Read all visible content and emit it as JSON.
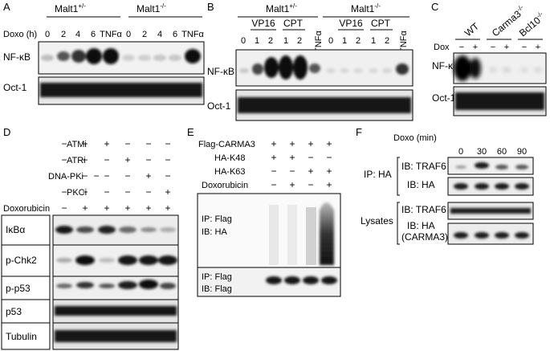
{
  "panels": {
    "A": {
      "letter": "A",
      "geno1": "Malt1",
      "geno1_sup": "+/-",
      "geno2": "Malt1",
      "geno2_sup": "-/-",
      "rowlabel": "Doxo (h)",
      "lanes": [
        "0",
        "2",
        "4",
        "6",
        "TNFα",
        "0",
        "2",
        "4",
        "6",
        "TNFα"
      ],
      "blots": [
        "NF-κB",
        "Oct-1"
      ]
    },
    "B": {
      "letter": "B",
      "geno1": "Malt1",
      "geno1_sup": "+/-",
      "geno2": "Malt1",
      "geno2_sup": "-/-",
      "groups": [
        "VP16",
        "CPT",
        "VP16",
        "CPT"
      ],
      "lanes": [
        "0",
        "1",
        "2",
        "1",
        "2",
        "TNFα",
        "0",
        "1",
        "2",
        "1",
        "2",
        "TNFα"
      ],
      "blots": [
        "NF-κB",
        "Oct-1"
      ]
    },
    "C": {
      "letter": "C",
      "groups": [
        {
          "name": "WT",
          "sup": ""
        },
        {
          "name": "Carma3",
          "sup": "-/-"
        },
        {
          "name": "Bcl10",
          "sup": "-/-"
        }
      ],
      "dox_label": "Dox",
      "signs": [
        "−",
        "+",
        "−",
        "+",
        "−",
        "+"
      ],
      "blots": [
        "NF-κB",
        "Oct-1"
      ]
    },
    "D": {
      "letter": "D",
      "treatments": [
        {
          "name": "ATMi",
          "signs": [
            "−",
            "−",
            "+",
            "−",
            "−",
            "−"
          ]
        },
        {
          "name": "ATRi",
          "signs": [
            "−",
            "−",
            "−",
            "+",
            "−",
            "−"
          ]
        },
        {
          "name": "DNA-PKi",
          "signs": [
            "−",
            "−",
            "−",
            "−",
            "+",
            "−"
          ]
        },
        {
          "name": "PKCi",
          "signs": [
            "−",
            "−",
            "−",
            "−",
            "−",
            "+"
          ]
        },
        {
          "name": "Doxorubicin",
          "signs": [
            "−",
            "+",
            "+",
            "+",
            "+",
            "+"
          ]
        }
      ],
      "blots": [
        "IκBα",
        "p-Chk2",
        "p-p53",
        "p53",
        "Tubulin"
      ]
    },
    "E": {
      "letter": "E",
      "treatments": [
        {
          "name": "Flag-CARMA3",
          "signs": [
            "+",
            "+",
            "+",
            "+"
          ]
        },
        {
          "name": "HA-K48",
          "signs": [
            "+",
            "+",
            "−",
            "−"
          ]
        },
        {
          "name": "HA-K63",
          "signs": [
            "−",
            "−",
            "+",
            "+"
          ]
        },
        {
          "name": "Doxorubicin",
          "signs": [
            "−",
            "+",
            "−",
            "+"
          ]
        }
      ],
      "blot1_line1": "IP: Flag",
      "blot1_line2": "IB: HA",
      "blot2_line1": "IP: Flag",
      "blot2_line2": "IB: Flag"
    },
    "F": {
      "letter": "F",
      "time_label": "Doxo (min)",
      "times": [
        "0",
        "30",
        "60",
        "90"
      ],
      "ip_label": "IP: HA",
      "ib_traf6": "IB: TRAF6",
      "ib_ha": "IB: HA",
      "lysates_label": "Lysates",
      "lys_traf6": "IB: TRAF6",
      "lys_ha_line1": "IB: HA",
      "lys_ha_line2": "(CARMA3)"
    }
  }
}
